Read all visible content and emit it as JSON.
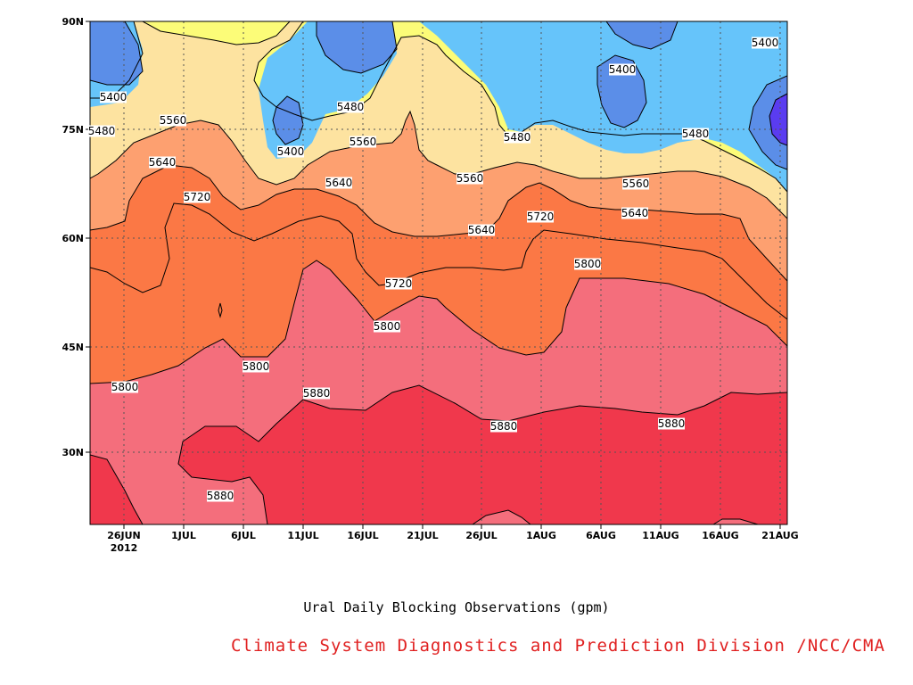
{
  "chart_data": {
    "type": "heatmap",
    "title": "Ural Daily Blocking Observations (gpm)",
    "credit": "Climate System Diagnostics and Prediction Division /NCC/CMA",
    "x_ticks": [
      {
        "label": "26JUN",
        "sub": "2012"
      },
      {
        "label": "1JUL"
      },
      {
        "label": "6JUL"
      },
      {
        "label": "11JUL"
      },
      {
        "label": "16JUL"
      },
      {
        "label": "21JUL"
      },
      {
        "label": "26JUL"
      },
      {
        "label": "1AUG"
      },
      {
        "label": "6AUG"
      },
      {
        "label": "11AUG"
      },
      {
        "label": "16AUG"
      },
      {
        "label": "21AUG"
      }
    ],
    "y_ticks": [
      "30N",
      "45N",
      "60N",
      "75N",
      "90N"
    ],
    "y_range": [
      "~20N",
      "90N"
    ],
    "grid": true,
    "contour_levels": [
      5400,
      5480,
      5560,
      5640,
      5720,
      5800,
      5880
    ],
    "fill_colors": {
      "5320": "#5a3cf0",
      "5400": "#5b8ee8",
      "5480": "#66c4fa",
      "5560": "#fcfc78",
      "5640": "#fde3a0",
      "5720": "#fda070",
      "5800": "#fb7845",
      "5880": "#f46e7c",
      "above": "#f0384c"
    },
    "contour_labels": [
      "5400",
      "5480",
      "5560",
      "5640",
      "5720",
      "5800",
      "5880",
      "5400",
      "5480",
      "5560",
      "5640",
      "5720",
      "5800",
      "5880",
      "5480",
      "5560",
      "5640",
      "5720",
      "5800",
      "5880",
      "5400",
      "5480",
      "5560",
      "5640",
      "5720",
      "5800",
      "5880",
      "5400",
      "5480",
      "5560",
      "5640",
      "5720",
      "5800",
      "5880"
    ]
  }
}
